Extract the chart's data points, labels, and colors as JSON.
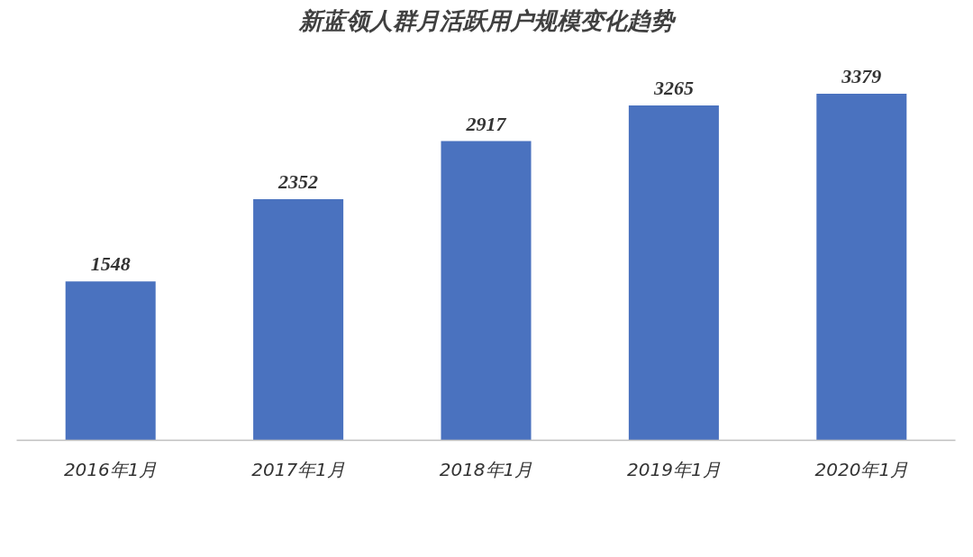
{
  "chart_data": {
    "type": "bar",
    "title": "新蓝领人群月活跃用户规模变化趋势",
    "categories": [
      "2016年1月",
      "2017年1月",
      "2018年1月",
      "2019年1月",
      "2020年1月"
    ],
    "series": [
      {
        "color": "#4a72bf",
        "values": [
          1548,
          2352,
          2917,
          3265,
          3379
        ]
      }
    ],
    "data_labels": true,
    "tick_labels": "x"
  }
}
